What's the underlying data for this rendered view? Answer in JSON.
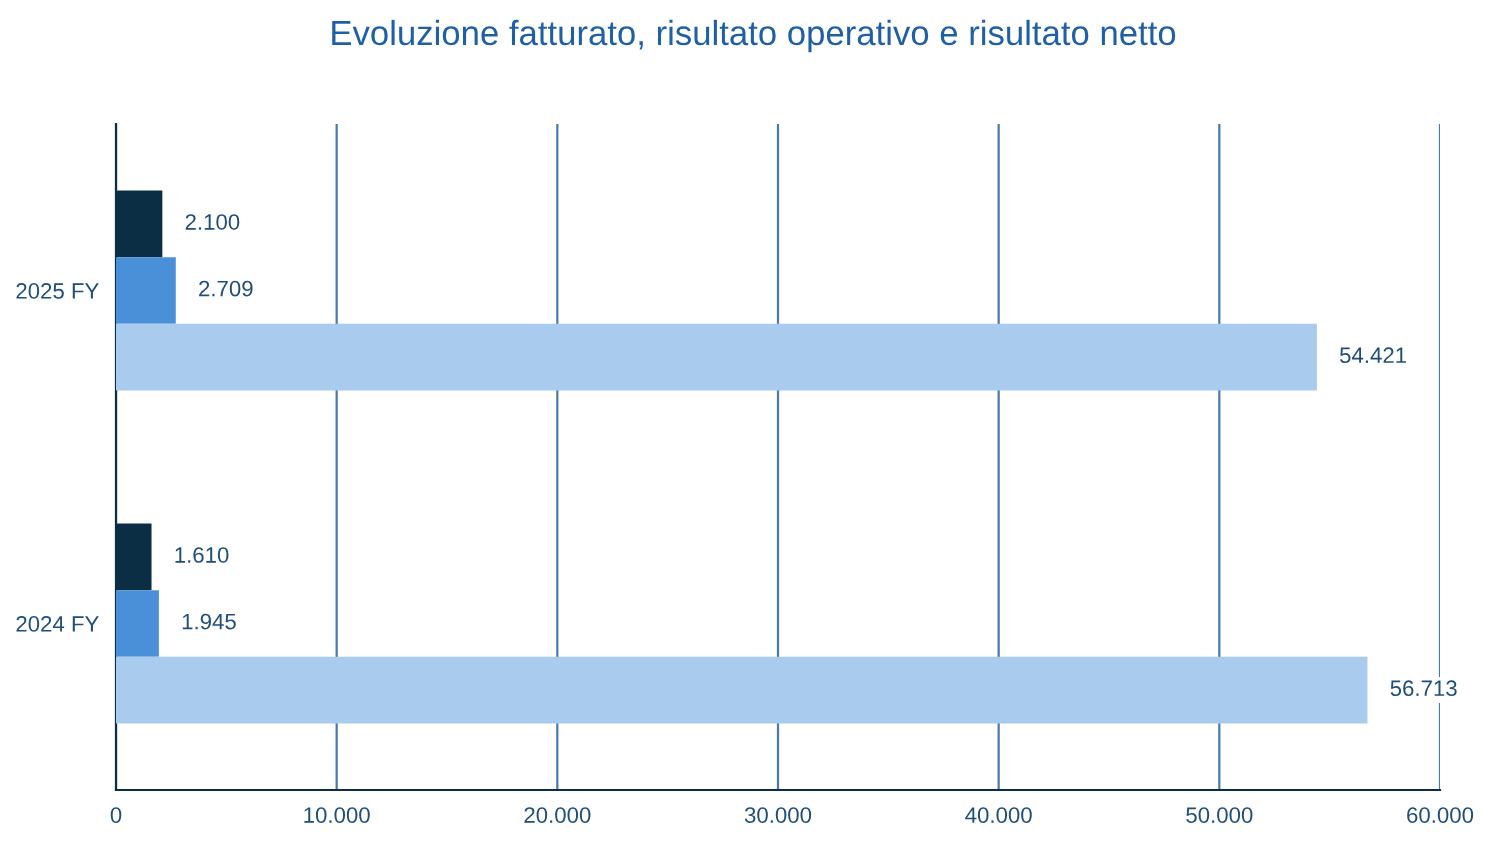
{
  "chart_data": {
    "type": "bar",
    "orientation": "horizontal",
    "title": "Evoluzione fatturato, risultato operativo e risultato netto",
    "categories": [
      "2025 FY",
      "2024 FY"
    ],
    "series": [
      {
        "color": "#0b2e44",
        "values": [
          2100,
          1610
        ],
        "value_labels": [
          "2.100",
          "1.610"
        ]
      },
      {
        "color": "#4a90d9",
        "values": [
          2709,
          1945
        ],
        "value_labels": [
          "2.709",
          "1.945"
        ]
      },
      {
        "color": "#a9cbee",
        "values": [
          54421,
          56713
        ],
        "value_labels": [
          "54.421",
          "56.713"
        ]
      }
    ],
    "xlim": [
      0,
      60000
    ],
    "xticks": [
      0,
      {
        "value": 10000,
        "label": "10.000"
      },
      {
        "value": 20000,
        "label": "20.000"
      },
      {
        "value": 30000,
        "label": "30.000"
      },
      {
        "value": 40000,
        "label": "40.000"
      },
      {
        "value": 50000,
        "label": "50.000"
      },
      {
        "value": 60000,
        "label": "60.000"
      }
    ],
    "grid": "x",
    "legend": false
  }
}
